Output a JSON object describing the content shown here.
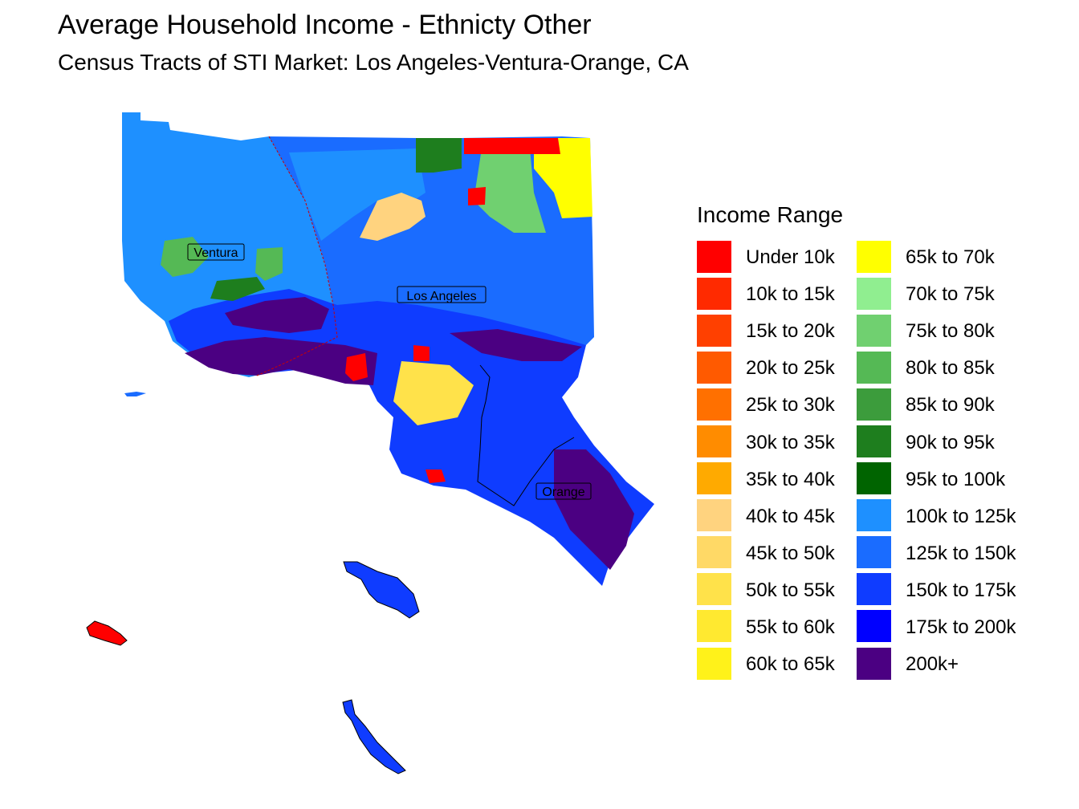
{
  "title": "Average Household Income - Ethnicty Other",
  "subtitle": "Census Tracts of STI Market: Los Angeles-Ventura-Orange, CA",
  "legend": {
    "title": "Income Range",
    "items": [
      {
        "label": "Under 10k",
        "color": "#ff0000"
      },
      {
        "label": "10k to 15k",
        "color": "#ff2a00"
      },
      {
        "label": "15k to 20k",
        "color": "#ff4000"
      },
      {
        "label": "20k to 25k",
        "color": "#ff5a00"
      },
      {
        "label": "25k to 30k",
        "color": "#ff7000"
      },
      {
        "label": "30k to 35k",
        "color": "#ff8c00"
      },
      {
        "label": "35k to 40k",
        "color": "#ffaa00"
      },
      {
        "label": "40k to 45k",
        "color": "#ffd37f"
      },
      {
        "label": "45k to 50k",
        "color": "#ffd966"
      },
      {
        "label": "50k to 55k",
        "color": "#ffe24a"
      },
      {
        "label": "55k to 60k",
        "color": "#ffe930"
      },
      {
        "label": "60k to 65k",
        "color": "#fff21a"
      },
      {
        "label": "65k to 70k",
        "color": "#ffff00"
      },
      {
        "label": "70k to 75k",
        "color": "#90ee90"
      },
      {
        "label": "75k to 80k",
        "color": "#70d070"
      },
      {
        "label": "80k to 85k",
        "color": "#55b955"
      },
      {
        "label": "85k to 90k",
        "color": "#3c9c3c"
      },
      {
        "label": "90k to 95k",
        "color": "#1e7e1e"
      },
      {
        "label": "95k to 100k",
        "color": "#006400"
      },
      {
        "label": "100k to 125k",
        "color": "#1e90ff"
      },
      {
        "label": "125k to 150k",
        "color": "#1a6cff"
      },
      {
        "label": "150k to 175k",
        "color": "#0f3cff"
      },
      {
        "label": "175k to 200k",
        "color": "#0000ff"
      },
      {
        "label": "200k+",
        "color": "#4b0082"
      }
    ]
  },
  "map": {
    "county_labels": [
      "Ventura",
      "Los Angeles",
      "Orange"
    ]
  }
}
